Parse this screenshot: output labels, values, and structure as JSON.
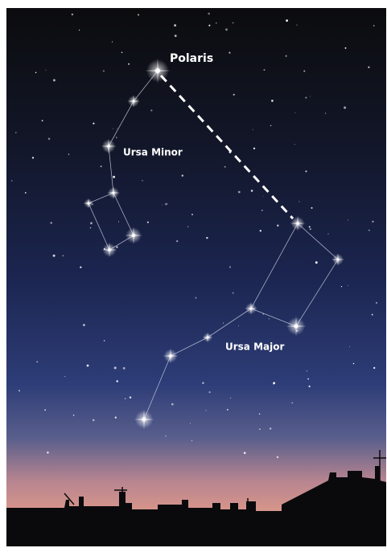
{
  "labels": {
    "polaris": "Polaris",
    "ursa_minor": "Ursa Minor",
    "ursa_major": "Ursa Major"
  }
}
